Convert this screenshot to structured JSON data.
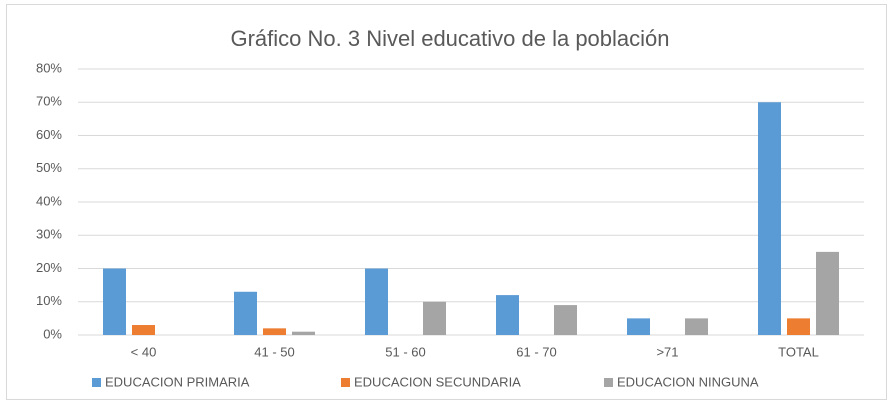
{
  "chart_data": {
    "type": "bar",
    "title": "Gráfico No. 3  Nivel educativo de la  población",
    "categories": [
      "< 40",
      "41  - 50",
      "51  -  60",
      "61  - 70",
      ">71",
      "TOTAL"
    ],
    "series": [
      {
        "name": "EDUCACION PRIMARIA",
        "color": "#5b9bd5",
        "values": [
          20,
          13,
          20,
          12,
          5,
          70
        ]
      },
      {
        "name": "EDUCACION SECUNDARIA",
        "color": "#ed7d31",
        "values": [
          3,
          2,
          0,
          0,
          0,
          5
        ]
      },
      {
        "name": "EDUCACION NINGUNA",
        "color": "#a5a5a5",
        "values": [
          0,
          1,
          10,
          9,
          5,
          25
        ]
      }
    ],
    "ylim": [
      0,
      80
    ],
    "yticks": [
      {
        "value": 0,
        "label": "0%"
      },
      {
        "value": 10,
        "label": "10%"
      },
      {
        "value": 20,
        "label": "20%"
      },
      {
        "value": 30,
        "label": "30%"
      },
      {
        "value": 40,
        "label": "40%"
      },
      {
        "value": 50,
        "label": "50%"
      },
      {
        "value": 60,
        "label": "60%"
      },
      {
        "value": 70,
        "label": "70%"
      },
      {
        "value": 80,
        "label": "80%"
      }
    ],
    "grid": true,
    "legend": "bottom"
  }
}
